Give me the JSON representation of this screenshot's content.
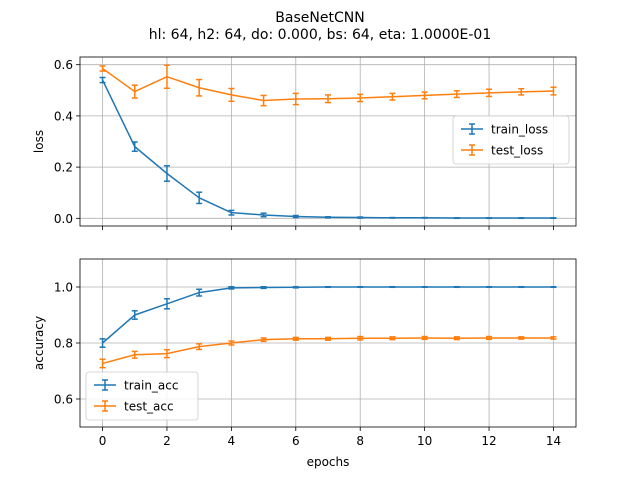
{
  "figure": {
    "title": "BaseNetCNN",
    "subtitle": "hl: 64, h2: 64, do: 0.000, bs: 64, eta: 1.0000E-01"
  },
  "colors": {
    "train": "#1f77b4",
    "test": "#ff7f0e",
    "grid": "#b0b0b0",
    "axis": "#000000"
  },
  "chart_data": [
    {
      "type": "line",
      "ylabel": "loss",
      "xlim": [
        -0.7,
        14.7
      ],
      "ylim": [
        -0.03,
        0.63
      ],
      "yticks": [
        0.0,
        0.2,
        0.4,
        0.6
      ],
      "ytick_labels": [
        "0.0",
        "0.2",
        "0.4",
        "0.6"
      ],
      "xticks": [
        0,
        2,
        4,
        6,
        8,
        10,
        12,
        14
      ],
      "xtick_labels": [],
      "grid": true,
      "legend_placement": "center-right",
      "x": [
        0,
        1,
        2,
        3,
        4,
        5,
        6,
        7,
        8,
        9,
        10,
        11,
        12,
        13,
        14
      ],
      "series": [
        {
          "name": "train_loss",
          "color": "#1f77b4",
          "values": [
            0.54,
            0.28,
            0.175,
            0.08,
            0.022,
            0.013,
            0.007,
            0.004,
            0.003,
            0.002,
            0.002,
            0.001,
            0.001,
            0.001,
            0.001
          ],
          "errors": [
            0.01,
            0.018,
            0.03,
            0.022,
            0.009,
            0.007,
            0.004,
            0.002,
            0.002,
            0.001,
            0.001,
            0.001,
            0.001,
            0.001,
            0.001
          ]
        },
        {
          "name": "test_loss",
          "color": "#ff7f0e",
          "values": [
            0.585,
            0.495,
            0.553,
            0.51,
            0.482,
            0.46,
            0.466,
            0.467,
            0.47,
            0.475,
            0.48,
            0.485,
            0.49,
            0.494,
            0.497
          ],
          "errors": [
            0.01,
            0.025,
            0.045,
            0.032,
            0.025,
            0.02,
            0.022,
            0.015,
            0.014,
            0.013,
            0.013,
            0.013,
            0.014,
            0.012,
            0.015
          ]
        }
      ]
    },
    {
      "type": "line",
      "ylabel": "accuracy",
      "xlabel": "epochs",
      "xlim": [
        -0.7,
        14.7
      ],
      "ylim": [
        0.5,
        1.1
      ],
      "yticks": [
        0.6,
        0.8,
        1.0
      ],
      "ytick_labels": [
        "0.6",
        "0.8",
        "1.0"
      ],
      "xticks": [
        0,
        2,
        4,
        6,
        8,
        10,
        12,
        14
      ],
      "xtick_labels": [
        "0",
        "2",
        "4",
        "6",
        "8",
        "10",
        "12",
        "14"
      ],
      "grid": true,
      "legend_placement": "lower-left",
      "x": [
        0,
        1,
        2,
        3,
        4,
        5,
        6,
        7,
        8,
        9,
        10,
        11,
        12,
        13,
        14
      ],
      "series": [
        {
          "name": "train_acc",
          "color": "#1f77b4",
          "values": [
            0.8,
            0.9,
            0.94,
            0.98,
            0.997,
            0.998,
            0.999,
            1.0,
            1.0,
            1.0,
            1.0,
            1.0,
            1.0,
            1.0,
            1.0
          ],
          "errors": [
            0.015,
            0.015,
            0.018,
            0.012,
            0.004,
            0.003,
            0.002,
            0.001,
            0.001,
            0.001,
            0.001,
            0.001,
            0.001,
            0.001,
            0.001
          ]
        },
        {
          "name": "test_acc",
          "color": "#ff7f0e",
          "values": [
            0.727,
            0.758,
            0.762,
            0.787,
            0.8,
            0.812,
            0.815,
            0.815,
            0.817,
            0.817,
            0.818,
            0.817,
            0.818,
            0.818,
            0.818
          ],
          "errors": [
            0.015,
            0.012,
            0.014,
            0.01,
            0.007,
            0.006,
            0.005,
            0.005,
            0.006,
            0.005,
            0.005,
            0.005,
            0.005,
            0.004,
            0.004
          ]
        }
      ]
    }
  ]
}
